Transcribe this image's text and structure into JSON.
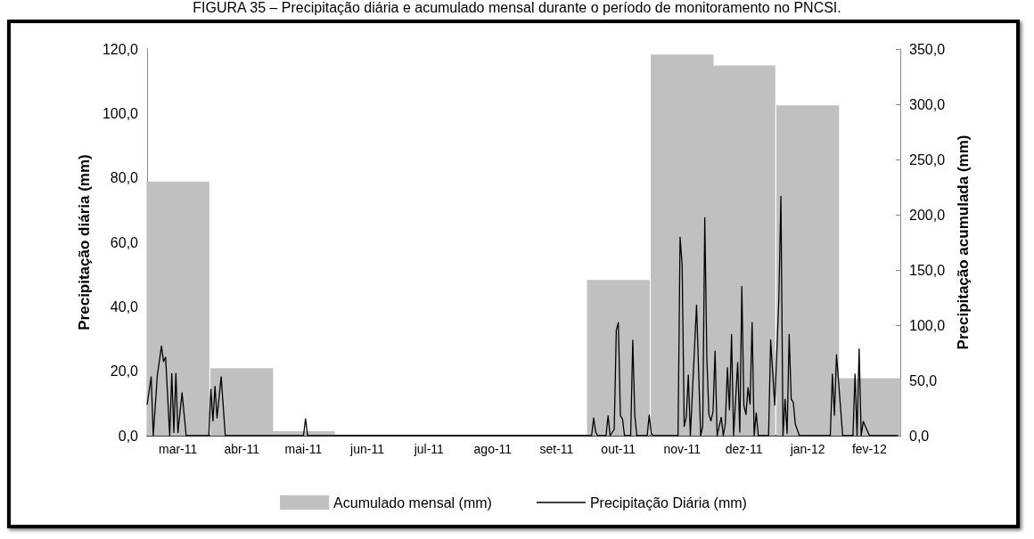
{
  "chart_data": {
    "type": "bar",
    "title": "FIGURA 35 – Precipitação diária e acumulado mensal durante o período de monitoramento no PNCSI.",
    "ylabel": "Precipitação diária (mm)",
    "y2label": "Precipitação acumulada (mm)",
    "xlim": [
      "2011-03-01",
      "2012-03-01"
    ],
    "xticks": [
      {
        "value": "2011-03-16",
        "label": "mar-11"
      },
      {
        "value": "2011-04-16",
        "label": "abr-11"
      },
      {
        "value": "2011-05-16",
        "label": "mai-11"
      },
      {
        "value": "2011-06-16",
        "label": "jun-11"
      },
      {
        "value": "2011-07-16",
        "label": "jul-11"
      },
      {
        "value": "2011-08-16",
        "label": "ago-11"
      },
      {
        "value": "2011-09-16",
        "label": "set-11"
      },
      {
        "value": "2011-10-16",
        "label": "out-11"
      },
      {
        "value": "2011-11-16",
        "label": "nov-11"
      },
      {
        "value": "2011-12-16",
        "label": "dez-11"
      },
      {
        "value": "2012-01-16",
        "label": "jan-12"
      },
      {
        "value": "2012-02-15",
        "label": "fev-12"
      }
    ],
    "ylim": [
      0,
      120
    ],
    "yticks": [
      {
        "value": 0,
        "label": "0,0"
      },
      {
        "value": 20,
        "label": "20,0"
      },
      {
        "value": 40,
        "label": "40,0"
      },
      {
        "value": 60,
        "label": "60,0"
      },
      {
        "value": 80,
        "label": "80,0"
      },
      {
        "value": 100,
        "label": "100,0"
      },
      {
        "value": 120,
        "label": "120,0"
      }
    ],
    "y2lim": [
      0,
      350
    ],
    "y2ticks": [
      {
        "value": 0,
        "label": "0,0"
      },
      {
        "value": 50,
        "label": "50,0"
      },
      {
        "value": 100,
        "label": "100,0"
      },
      {
        "value": 150,
        "label": "150,0"
      },
      {
        "value": 200,
        "label": "200,0"
      },
      {
        "value": 250,
        "label": "250,0"
      },
      {
        "value": 300,
        "label": "300,0"
      },
      {
        "value": 350,
        "label": "350,0"
      }
    ],
    "grid": false,
    "legend": "bottom",
    "marker": "none",
    "line_style": "solid",
    "series": [
      {
        "name": "Acumulado mensal (mm)",
        "axis": "y2",
        "color": "#c0c0c0",
        "x": [
          "2011-03-16",
          "2011-04-16",
          "2011-05-16",
          "2011-06-16",
          "2011-07-16",
          "2011-08-16",
          "2011-09-16",
          "2011-10-16",
          "2011-11-16",
          "2011-12-16",
          "2012-01-16",
          "2012-02-15"
        ],
        "values": [
          230,
          61,
          4,
          0,
          0,
          0,
          0,
          141,
          345,
          335,
          299,
          52
        ]
      },
      {
        "name": "Precipitação Diária (mm)",
        "type": "line",
        "color": "#000000",
        "x": [
          "2011-03-01",
          "2011-03-03",
          "2011-03-04",
          "2011-03-06",
          "2011-03-08",
          "2011-03-09",
          "2011-03-10",
          "2011-03-12",
          "2011-03-13",
          "2011-03-14",
          "2011-03-15",
          "2011-03-16",
          "2011-03-18",
          "2011-03-20",
          "2011-03-31",
          "2011-04-01",
          "2011-04-02",
          "2011-04-03",
          "2011-04-04",
          "2011-04-06",
          "2011-04-08",
          "2011-05-16",
          "2011-05-17",
          "2011-05-18",
          "2011-10-03",
          "2011-10-04",
          "2011-10-05",
          "2011-10-06",
          "2011-10-10",
          "2011-10-11",
          "2011-10-12",
          "2011-10-14",
          "2011-10-15",
          "2011-10-16",
          "2011-10-17",
          "2011-10-18",
          "2011-10-19",
          "2011-10-22",
          "2011-10-23",
          "2011-10-24",
          "2011-10-25",
          "2011-10-30",
          "2011-10-31",
          "2011-11-01",
          "2011-11-02",
          "2011-11-14",
          "2011-11-15",
          "2011-11-16",
          "2011-11-17",
          "2011-11-18",
          "2011-11-19",
          "2011-11-20",
          "2011-11-23",
          "2011-11-25",
          "2011-11-26",
          "2011-11-27",
          "2011-11-28",
          "2011-11-29",
          "2011-11-30",
          "2011-12-01",
          "2011-12-02",
          "2011-12-03",
          "2011-12-05",
          "2011-12-06",
          "2011-12-07",
          "2011-12-08",
          "2011-12-09",
          "2011-12-10",
          "2011-12-11",
          "2011-12-13",
          "2011-12-14",
          "2011-12-15",
          "2011-12-16",
          "2011-12-17",
          "2011-12-18",
          "2011-12-19",
          "2011-12-20",
          "2011-12-21",
          "2011-12-22",
          "2011-12-23",
          "2011-12-28",
          "2011-12-29",
          "2011-12-31",
          "2012-01-02",
          "2012-01-03",
          "2012-01-04",
          "2012-01-05",
          "2012-01-06",
          "2012-01-07",
          "2012-01-08",
          "2012-01-09",
          "2012-01-10",
          "2012-01-12",
          "2012-01-27",
          "2012-01-28",
          "2012-01-29",
          "2012-01-30",
          "2012-02-02",
          "2012-02-07",
          "2012-02-08",
          "2012-02-09",
          "2012-02-10",
          "2012-02-11",
          "2012-02-12",
          "2012-02-15",
          "2012-02-29"
        ],
        "values": [
          9.6,
          18.3,
          0,
          18.8,
          27.8,
          23,
          24.3,
          0,
          19.3,
          1,
          19.3,
          1,
          13.3,
          0,
          0,
          14.4,
          4.6,
          15.3,
          5.5,
          18.3,
          0,
          0,
          5.2,
          0,
          0,
          5.5,
          1,
          0,
          0,
          6.2,
          0,
          2,
          32.8,
          35.1,
          6.2,
          5.2,
          0,
          0,
          29.6,
          6.2,
          0,
          0,
          6.4,
          0.6,
          0,
          0,
          61.6,
          53,
          2.9,
          5.7,
          18.8,
          0,
          40.5,
          0,
          2.9,
          67.6,
          24.1,
          6.6,
          4.6,
          7.5,
          26.2,
          0,
          5.7,
          0,
          3.9,
          21.1,
          8,
          31.4,
          0,
          22.7,
          1.1,
          46.3,
          9.4,
          6.6,
          14.9,
          9.8,
          35.1,
          0,
          7.1,
          0,
          0,
          29.7,
          9.5,
          42.6,
          74.3,
          0,
          11.3,
          0.7,
          31.4,
          11.3,
          10.4,
          3.5,
          0,
          0,
          19.1,
          6.3,
          25.1,
          0,
          0,
          19.1,
          0,
          26.9,
          0,
          4.4,
          0,
          0
        ]
      }
    ]
  }
}
